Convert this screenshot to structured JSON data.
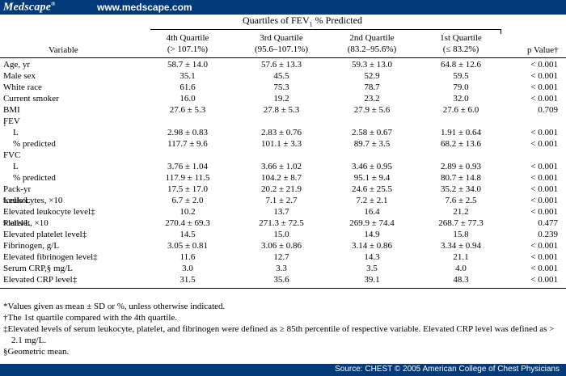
{
  "header": {
    "logo": "Medscape",
    "logo_mark": "®",
    "url": "www.medscape.com"
  },
  "table": {
    "quartiles_title": "Quartiles of FEV",
    "quartiles_sub": "1",
    "quartiles_title_end": " % Predicted",
    "variable_header": "Variable",
    "pvalue_header": "p Value†",
    "columns": [
      {
        "name": "4th Quartile",
        "range": "(> 107.1%)"
      },
      {
        "name": "3rd Quartile",
        "range": "(95.6–107.1%)"
      },
      {
        "name": "2nd Quartile",
        "range": "(83.2–95.6%)"
      },
      {
        "name": "1st Quartile",
        "range": "(≤ 83.2%)"
      }
    ],
    "rows": [
      {
        "label": "Age, yr",
        "q4": "58.7 ± 14.0",
        "q3": "57.6 ± 13.3",
        "q2": "59.3 ± 13.0",
        "q1": "64.8 ± 12.6",
        "p": "< 0.001"
      },
      {
        "label": "Male sex",
        "q4": "35.1",
        "q3": "45.5",
        "q2": "52.9",
        "q1": "59.5",
        "p": "< 0.001"
      },
      {
        "label": "White race",
        "q4": "61.6",
        "q3": "75.3",
        "q2": "78.7",
        "q1": "79.0",
        "p": "< 0.001"
      },
      {
        "label": "Current smoker",
        "q4": "16.0",
        "q3": "19.2",
        "q2": "23.2",
        "q1": "32.0",
        "p": "< 0.001"
      },
      {
        "label": "BMI",
        "q4": "27.6 ± 5.3",
        "q3": "27.8 ± 5.3",
        "q2": "27.9 ± 5.6",
        "q1": "27.6 ± 6.0",
        "p": "0.709"
      },
      {
        "label": "FEV",
        "q4": "",
        "q3": "",
        "q2": "",
        "q1": "",
        "p": ""
      },
      {
        "label": "L",
        "q4": "2.98 ± 0.83",
        "q3": "2.83 ± 0.76",
        "q2": "2.58 ± 0.67",
        "q1": "1.91 ± 0.64",
        "p": "< 0.001"
      },
      {
        "label": "% predicted",
        "q4": "117.7 ± 9.6",
        "q3": "101.1 ± 3.3",
        "q2": "89.7 ± 3.5",
        "q1": "68.2 ± 13.6",
        "p": "< 0.001"
      },
      {
        "label": "FVC",
        "q4": "",
        "q3": "",
        "q2": "",
        "q1": "",
        "p": ""
      },
      {
        "label": "L",
        "q4": "3.76 ± 1.04",
        "q3": "3.66 ± 1.02",
        "q2": "3.46 ± 0.95",
        "q1": "2.89 ± 0.93",
        "p": "< 0.001"
      },
      {
        "label": "% predicted",
        "q4": "117.9 ± 11.5",
        "q3": "104.2 ± 8.7",
        "q2": "95.1 ± 9.4",
        "q1": "80.7 ± 14.8",
        "p": "< 0.001"
      },
      {
        "label": "Pack-yr",
        "q4": "17.5 ± 17.0",
        "q3": "20.2 ± 21.9",
        "q2": "24.6 ± 25.5",
        "q1": "35.2 ± 34.0",
        "p": "< 0.001"
      },
      {
        "label": "Leukocytes, ×10",
        "q4": "6.7 ± 2.0",
        "q3": "7.1 ± 2.7",
        "q2": "7.2 ± 2.1",
        "q1": "7.6 ± 2.5",
        "p": "< 0.001"
      },
      {
        "label": "Elevated leukocyte level‡",
        "q4": "10.2",
        "q3": "13.7",
        "q2": "16.4",
        "q1": "21.2",
        "p": "< 0.001"
      },
      {
        "label": "Platelet, ×10",
        "q4": "270.4 ± 69.3",
        "q3": "271.3 ± 72.5",
        "q2": "269.9 ± 74.4",
        "q1": "268.7 ± 77.3",
        "p": "0.477"
      },
      {
        "label": "Elevated platelet level‡",
        "q4": "14.5",
        "q3": "15.0",
        "q2": "14.9",
        "q1": "15.8",
        "p": "0.239"
      },
      {
        "label": "Fibrinogen, g/L",
        "q4": "3.05 ± 0.81",
        "q3": "3.06 ± 0.86",
        "q2": "3.14 ± 0.86",
        "q1": "3.34 ± 0.94",
        "p": "< 0.001"
      },
      {
        "label": "Elevated fibrinogen level‡",
        "q4": "11.6",
        "q3": "12.7",
        "q2": "14.3",
        "q1": "21.1",
        "p": "< 0.001"
      },
      {
        "label": "Serum CRP,§ mg/L",
        "q4": "3.0",
        "q3": "3.3",
        "q2": "3.5",
        "q1": "4.0",
        "p": "< 0.001"
      },
      {
        "label": "Elevated CRP level‡",
        "q4": "31.5",
        "q3": "35.6",
        "q2": "39.1",
        "q1": "48.3",
        "p": "< 0.001"
      }
    ],
    "label_extras": {
      "fev_sub": "1",
      "exp9": "9",
      "cells_per_l": " cells/L"
    }
  },
  "notes": {
    "n1": "*Values given as mean ± SD or %, unless otherwise indicated.",
    "n2": "†The 1st quartile compared with the 4th quartile.",
    "n3": "‡Elevated levels of serum leukocyte, platelet, and fibrinogen were defined as ≥ 85th percentile of respective variable. Elevated CRP level was defined as > 2.1 mg/L.",
    "n4": "§Geometric mean."
  },
  "footer": {
    "source": "Source: CHEST © 2005 American College of Chest Physicians"
  },
  "colors": {
    "brand_bar": "#003a78",
    "text": "#000000",
    "background": "#ffffff"
  }
}
